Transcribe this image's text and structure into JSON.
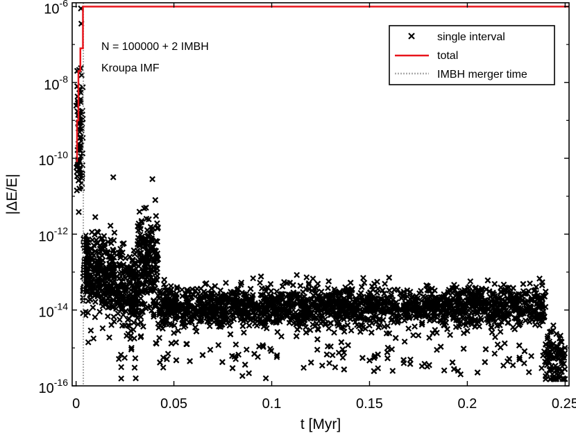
{
  "chart_data": {
    "type": "scatter",
    "title": "",
    "xlabel": "t [Myr]",
    "ylabel": "|ΔE/E|",
    "xlim": [
      -0.002,
      0.252
    ],
    "ylim_log10": [
      -16,
      -5.9
    ],
    "y_scale": "log",
    "grid": false,
    "legend_position": "top-right",
    "x_ticks": [
      0,
      0.05,
      0.1,
      0.15,
      0.2,
      0.25
    ],
    "x_tick_labels": [
      "0",
      "0.05",
      "0.1",
      "0.15",
      "0.2",
      "0.25"
    ],
    "y_ticks_log10": [
      -16,
      -14,
      -12,
      -10,
      -8,
      -6
    ],
    "y_tick_base": "10",
    "y_tick_exponents": [
      "-16",
      "-14",
      "-12",
      "-10",
      "-8",
      "-6"
    ],
    "annotations": [
      "N = 100000 + 2 IMBH",
      "Kroupa IMF"
    ],
    "merger_time": 0.0037,
    "series": [
      {
        "name": "single interval",
        "marker": "x",
        "color": "#000000",
        "segments": [
          {
            "t_start": 0.0,
            "t_end": 0.0035,
            "log10_center": -9.3,
            "log10_spread": 1.6,
            "count": 70
          },
          {
            "t_start": 0.0035,
            "t_end": 0.006,
            "log10_center": -12.9,
            "log10_spread": 0.9,
            "count": 60
          },
          {
            "t_start": 0.006,
            "t_end": 0.02,
            "log10_center": -13.0,
            "log10_spread": 1.0,
            "count": 260
          },
          {
            "t_start": 0.02,
            "t_end": 0.031,
            "log10_center": -13.5,
            "log10_spread": 1.0,
            "count": 200
          },
          {
            "t_start": 0.031,
            "t_end": 0.042,
            "log10_center": -12.8,
            "log10_spread": 1.3,
            "count": 220
          },
          {
            "t_start": 0.042,
            "t_end": 0.24,
            "log10_center": -13.9,
            "log10_spread": 0.55,
            "count": 2600
          },
          {
            "t_start": 0.24,
            "t_end": 0.25,
            "log10_center": -15.2,
            "log10_spread": 0.6,
            "count": 90
          }
        ],
        "outliers": [
          {
            "t": 0.0025,
            "log10": -6.05
          },
          {
            "t": 0.0027,
            "log10": -6.45
          },
          {
            "t": 0.019,
            "log10": -10.5
          },
          {
            "t": 0.039,
            "log10": -10.55
          },
          {
            "t": 0.0405,
            "log10": -11.1
          },
          {
            "t": 0.0305,
            "log10": -15.8
          },
          {
            "t": 0.097,
            "log10": -15.8
          },
          {
            "t": 0.232,
            "log10": -13.3
          },
          {
            "t": 0.244,
            "log10": -15.8
          },
          {
            "t": 0.247,
            "log10": -15.8
          },
          {
            "t": 0.249,
            "log10": -15.8
          }
        ]
      },
      {
        "name": "total",
        "type": "line",
        "color": "#e8141b",
        "x": [
          0.0005,
          0.0005,
          0.0012,
          0.0012,
          0.0022,
          0.0022,
          0.0035,
          0.0035,
          0.252
        ],
        "log10": [
          -10.1,
          -9.0,
          -9.0,
          -7.7,
          -7.7,
          -7.1,
          -7.1,
          -6.0,
          -6.0
        ]
      },
      {
        "name": "IMBH merger time",
        "type": "vline",
        "color": "#aaaaaa",
        "dash": "dotted",
        "x": 0.0037
      }
    ]
  }
}
